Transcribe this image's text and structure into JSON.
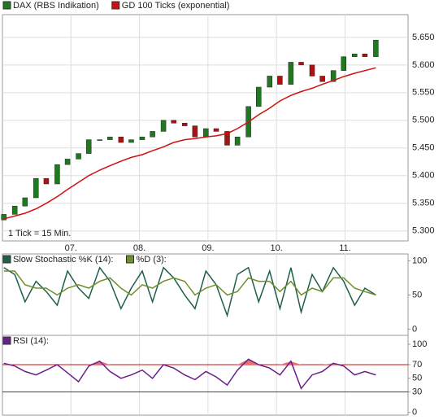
{
  "chart_data": [
    {
      "type": "candlestick",
      "annotation": "1 Tick = 15 Min.",
      "x": [
        6.02,
        6.18,
        6.33,
        6.49,
        6.64,
        6.8,
        6.95,
        7.11,
        7.26,
        7.42,
        7.57,
        7.73,
        7.88,
        8.04,
        8.19,
        8.35,
        8.5,
        8.66,
        8.81,
        8.97,
        9.12,
        9.28,
        9.43,
        9.59,
        9.74,
        9.9,
        10.05,
        10.21,
        10.36,
        10.52,
        10.67,
        10.83,
        10.98,
        11.14,
        11.29,
        11.45
      ],
      "series": [
        {
          "name": "DAX (RBS Indikation)",
          "color": "#1f7a1f",
          "down_color": "#b01010",
          "open": [
            5320,
            5330,
            5345,
            5360,
            5395,
            5385,
            5420,
            5430,
            5440,
            5465,
            5465,
            5470,
            5460,
            5465,
            5470,
            5480,
            5500,
            5495,
            5490,
            5470,
            5485,
            5480,
            5455,
            5470,
            5525,
            5560,
            5580,
            5565,
            5605,
            5600,
            5580,
            5570,
            5590,
            5615,
            5620,
            5615
          ],
          "close": [
            5330,
            5345,
            5360,
            5395,
            5385,
            5420,
            5430,
            5440,
            5465,
            5465,
            5470,
            5460,
            5465,
            5470,
            5480,
            5500,
            5495,
            5490,
            5470,
            5485,
            5480,
            5455,
            5470,
            5525,
            5560,
            5580,
            5565,
            5605,
            5600,
            5580,
            5570,
            5590,
            5615,
            5620,
            5615,
            5645
          ]
        },
        {
          "name": "GD 100 Ticks (exponential)",
          "color": "#d01010",
          "values": [
            5322,
            5327,
            5332,
            5340,
            5350,
            5362,
            5375,
            5388,
            5400,
            5410,
            5418,
            5426,
            5433,
            5438,
            5445,
            5452,
            5460,
            5465,
            5467,
            5470,
            5472,
            5476,
            5485,
            5497,
            5510,
            5522,
            5535,
            5545,
            5552,
            5558,
            5565,
            5572,
            5579,
            5585,
            5590,
            5595
          ]
        }
      ],
      "xlim": [
        6.0,
        11.92
      ],
      "xticks": [
        {
          "value": 7,
          "label": "07."
        },
        {
          "value": 8,
          "label": "08."
        },
        {
          "value": 9,
          "label": "09."
        },
        {
          "value": 10,
          "label": "10."
        },
        {
          "value": 11,
          "label": "11."
        }
      ],
      "ylim": [
        5282,
        5691
      ],
      "yticks": [
        {
          "value": 5300,
          "label": "5.300"
        },
        {
          "value": 5350,
          "label": "5.350"
        },
        {
          "value": 5400,
          "label": "5.400"
        },
        {
          "value": 5450,
          "label": "5.450"
        },
        {
          "value": 5500,
          "label": "5.500"
        },
        {
          "value": 5550,
          "label": "5.550"
        },
        {
          "value": 5600,
          "label": "5.600"
        },
        {
          "value": 5650,
          "label": "5.650"
        }
      ],
      "grid": true
    },
    {
      "type": "line",
      "x": [
        6.02,
        6.18,
        6.33,
        6.49,
        6.64,
        6.8,
        6.95,
        7.11,
        7.26,
        7.42,
        7.57,
        7.73,
        7.88,
        8.04,
        8.19,
        8.35,
        8.5,
        8.66,
        8.81,
        8.97,
        9.12,
        9.28,
        9.43,
        9.59,
        9.74,
        9.9,
        10.05,
        10.21,
        10.36,
        10.52,
        10.67,
        10.83,
        10.98,
        11.14,
        11.29,
        11.45
      ],
      "series": [
        {
          "name": "Slow Stochastic %K (14):",
          "color": "#1d5f4a",
          "values": [
            90,
            80,
            40,
            70,
            55,
            35,
            85,
            60,
            45,
            90,
            70,
            30,
            60,
            85,
            40,
            90,
            75,
            50,
            30,
            85,
            65,
            20,
            80,
            90,
            40,
            85,
            30,
            90,
            25,
            80,
            55,
            90,
            70,
            35,
            60,
            50
          ]
        },
        {
          "name": "%D (3):",
          "color": "#6f8f2a",
          "values": [
            85,
            85,
            65,
            60,
            60,
            50,
            60,
            65,
            60,
            70,
            75,
            60,
            50,
            65,
            60,
            70,
            75,
            70,
            50,
            60,
            65,
            50,
            55,
            75,
            70,
            70,
            55,
            70,
            50,
            60,
            55,
            75,
            75,
            60,
            55,
            50
          ]
        }
      ],
      "xlim": [
        6.0,
        11.92
      ],
      "xticks": [
        7,
        8,
        9,
        10,
        11
      ],
      "ylim": [
        -9,
        110
      ],
      "yticks": [
        0,
        50,
        100
      ],
      "grid": true
    },
    {
      "type": "line",
      "x": [
        6.02,
        6.18,
        6.33,
        6.49,
        6.64,
        6.8,
        6.95,
        7.11,
        7.26,
        7.42,
        7.57,
        7.73,
        7.88,
        8.04,
        8.19,
        8.35,
        8.5,
        8.66,
        8.81,
        8.97,
        9.12,
        9.28,
        9.43,
        9.59,
        9.74,
        9.9,
        10.05,
        10.21,
        10.36,
        10.52,
        10.67,
        10.83,
        10.98,
        11.14,
        11.29,
        11.45
      ],
      "series": [
        {
          "name": "RSI (14):",
          "color": "#6a1f8a",
          "fill_above": 70,
          "fill_color": "#e87070",
          "values": [
            72,
            68,
            60,
            55,
            62,
            70,
            58,
            45,
            68,
            75,
            60,
            50,
            55,
            62,
            50,
            70,
            65,
            55,
            48,
            60,
            52,
            40,
            62,
            78,
            70,
            65,
            55,
            75,
            35,
            55,
            60,
            72,
            68,
            55,
            60,
            55
          ]
        }
      ],
      "reference_lines": [
        {
          "value": 70,
          "color": "#d01010"
        },
        {
          "value": 30,
          "color": "#3333cc"
        }
      ],
      "xlim": [
        6.0,
        11.92
      ],
      "xticks": [
        7,
        8,
        9,
        10,
        11
      ],
      "ylim": [
        -4,
        113
      ],
      "yticks": [
        0,
        30,
        50,
        70,
        100
      ],
      "grid": true
    }
  ]
}
